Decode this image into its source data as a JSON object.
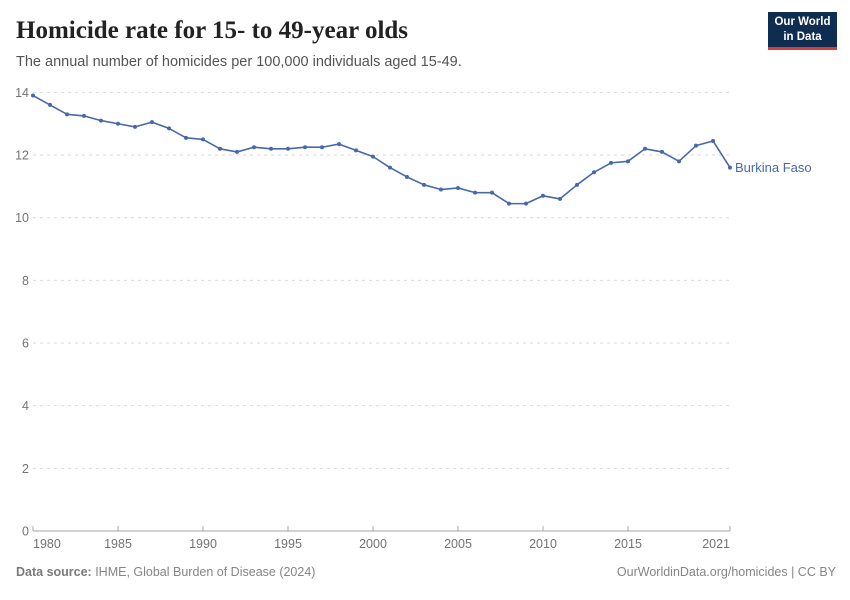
{
  "header": {
    "title": "Homicide rate for 15- to 49-year olds",
    "subtitle": "The annual number of homicides per 100,000 individuals aged 15-49."
  },
  "logo": {
    "line1": "Our World",
    "line2": "in Data",
    "bg_color": "#0e2d51",
    "accent_color": "#ce4037"
  },
  "chart_data": {
    "type": "line",
    "title": "Homicide rate for 15- to 49-year olds",
    "xlabel": "",
    "ylabel": "",
    "x": [
      1980,
      1981,
      1982,
      1983,
      1984,
      1985,
      1986,
      1987,
      1988,
      1989,
      1990,
      1991,
      1992,
      1993,
      1994,
      1995,
      1996,
      1997,
      1998,
      1999,
      2000,
      2001,
      2002,
      2003,
      2004,
      2005,
      2006,
      2007,
      2008,
      2009,
      2010,
      2011,
      2012,
      2013,
      2014,
      2015,
      2016,
      2017,
      2018,
      2019,
      2020,
      2021
    ],
    "series": [
      {
        "name": "Burkina Faso",
        "color": "#4868ab",
        "values": [
          13.9,
          13.6,
          13.3,
          13.25,
          13.1,
          13.0,
          12.9,
          13.05,
          12.85,
          12.55,
          12.5,
          12.2,
          12.1,
          12.25,
          12.2,
          12.2,
          12.25,
          12.25,
          12.35,
          12.15,
          11.95,
          11.6,
          11.3,
          11.05,
          10.9,
          10.95,
          10.8,
          10.8,
          10.45,
          10.45,
          10.7,
          10.6,
          11.05,
          11.45,
          11.75,
          11.8,
          12.2,
          12.1,
          11.8,
          12.3,
          12.45,
          11.6
        ]
      }
    ],
    "entity_label": "Burkina Faso",
    "ylim": [
      0,
      14
    ],
    "yticks": [
      0,
      2,
      4,
      6,
      8,
      10,
      12,
      14
    ],
    "xticks": [
      1980,
      1985,
      1990,
      1995,
      2000,
      2005,
      2010,
      2015,
      2021
    ],
    "grid": "dashed-horizontal",
    "legend_position": "end-of-line-label",
    "colors": {
      "gridline": "#dadada",
      "axis": "#a5a5a5",
      "tick_label": "#737373"
    }
  },
  "footer": {
    "source_label": "Data source:",
    "source_text": " IHME, Global Burden of Disease (2024)",
    "rights": "OurWorldinData.org/homicides | CC BY"
  }
}
